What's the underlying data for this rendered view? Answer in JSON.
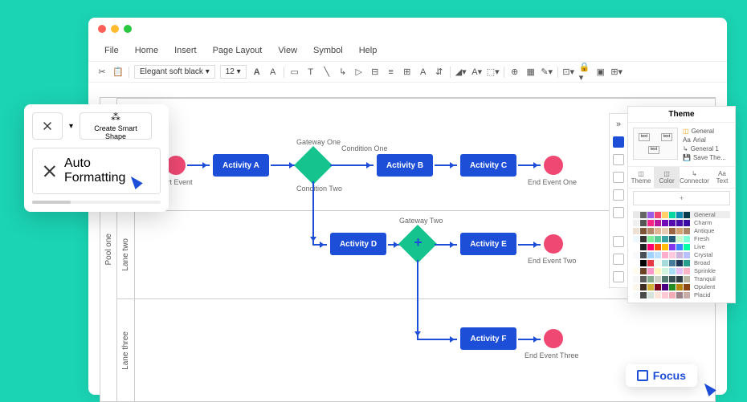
{
  "background_color": "#1bd4b3",
  "window": {
    "dots": [
      "#ff5f57",
      "#febc2e",
      "#28c840"
    ]
  },
  "menu": [
    "File",
    "Home",
    "Insert",
    "Page Layout",
    "View",
    "Symbol",
    "Help"
  ],
  "toolbar": {
    "font": "Elegant soft black",
    "size": "12"
  },
  "pool": {
    "label": "Pool one"
  },
  "lanes": [
    {
      "label": ""
    },
    {
      "label": "Lane two"
    },
    {
      "label": "Lane three"
    }
  ],
  "nodes": {
    "start": {
      "label": "Start Event",
      "color": "#ef4973"
    },
    "a": {
      "label": "Activity A",
      "color": "#1d4ed8"
    },
    "g1": {
      "label": "Gateway One",
      "color": "#14c38e",
      "c1": "Condition One",
      "c2": "Condition Two"
    },
    "b": {
      "label": "Activity B",
      "color": "#1d4ed8"
    },
    "c": {
      "label": "Activity C",
      "color": "#1d4ed8"
    },
    "e1": {
      "label": "End Event One",
      "color": "#ef4973"
    },
    "d": {
      "label": "Activity D",
      "color": "#1d4ed8"
    },
    "g2": {
      "label": "Gateway Two",
      "color": "#14c38e"
    },
    "e": {
      "label": "Activity E",
      "color": "#1d4ed8"
    },
    "e2": {
      "label": "End Event Two",
      "color": "#ef4973"
    },
    "f": {
      "label": "Activity F",
      "color": "#1d4ed8"
    },
    "e3": {
      "label": "End Event Three",
      "color": "#ef4973"
    }
  },
  "popup": {
    "smart": "Create Smart Shape",
    "auto": "Auto Formatting"
  },
  "panel": {
    "title": "Theme",
    "opts": [
      "General",
      "Arial",
      "General 1",
      "Save The..."
    ],
    "tabs": [
      "Theme",
      "Color",
      "Connector",
      "Text"
    ],
    "palettes": [
      "General",
      "Charm",
      "Antique",
      "Fresh",
      "Live",
      "Crystal",
      "Broad",
      "Sprinkle",
      "Tranquil",
      "Opulent",
      "Placid"
    ],
    "palette_colors": [
      [
        "#e8e8e8",
        "#666",
        "#9b5de5",
        "#ef476f",
        "#ffd166",
        "#06d6a0",
        "#118ab2",
        "#073b4c"
      ],
      [
        "#f0f0f0",
        "#555",
        "#f72585",
        "#b5179e",
        "#7209b7",
        "#560bad",
        "#480ca8",
        "#3a0ca3"
      ],
      [
        "#ede0d4",
        "#7f5539",
        "#b08968",
        "#ddb892",
        "#e6ccb2",
        "#9c6644",
        "#d4a373",
        "#a98467"
      ],
      [
        "#f0f8ff",
        "#333",
        "#80ed99",
        "#57cc99",
        "#38a3a5",
        "#22577a",
        "#c7f9cc",
        "#80ffdb"
      ],
      [
        "#fff",
        "#222",
        "#ff006e",
        "#fb5607",
        "#ffbe0b",
        "#8338ec",
        "#3a86ff",
        "#06ffa5"
      ],
      [
        "#f8f9fa",
        "#495057",
        "#a2d2ff",
        "#bde0fe",
        "#ffafcc",
        "#ffc8dd",
        "#cdb4db",
        "#b8c0ff"
      ],
      [
        "#fff",
        "#000",
        "#e63946",
        "#f1faee",
        "#a8dadc",
        "#457b9d",
        "#1d3557",
        "#2a9d8f"
      ],
      [
        "#fffbf0",
        "#6b4226",
        "#ff99c8",
        "#fcf6bd",
        "#d0f4de",
        "#a9def9",
        "#e4c1f9",
        "#ffb3c6"
      ],
      [
        "#f7f7f7",
        "#5a5a5a",
        "#84a98c",
        "#cad2c5",
        "#52796f",
        "#354f52",
        "#2f3e46",
        "#b7b7a4"
      ],
      [
        "#fdf6ec",
        "#3d2b1f",
        "#d4af37",
        "#800020",
        "#4b0082",
        "#228b22",
        "#b8860b",
        "#8b4513"
      ],
      [
        "#fafafa",
        "#4a4a4a",
        "#d8e2dc",
        "#ffe5d9",
        "#ffcad4",
        "#f4acb7",
        "#9d8189",
        "#c9ada7"
      ]
    ]
  },
  "focus": {
    "label": "Focus"
  }
}
